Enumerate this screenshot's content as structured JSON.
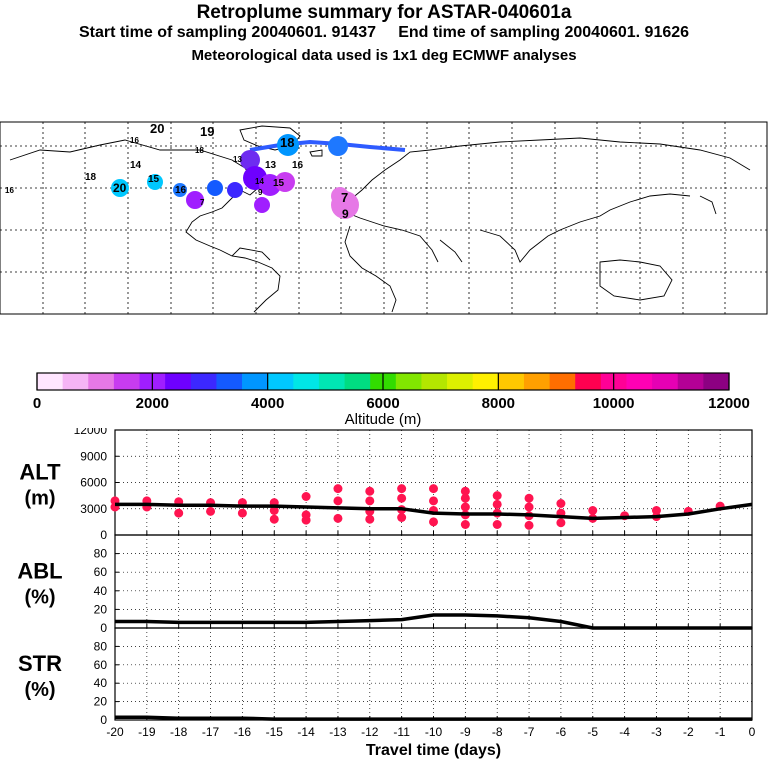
{
  "header": {
    "title": "Retroplume summary for ASTAR-040601a",
    "start_label": "Start time of sampling 20040601. 91437",
    "end_label": "End time of sampling 20040601. 91626",
    "meteo_label": "Meteorological data used is 1x1 deg ECMWF analyses"
  },
  "map": {
    "plume_labels": [
      "20",
      "19",
      "16",
      "18",
      "7",
      "13",
      "16",
      "14",
      "15",
      "18",
      "20",
      "16",
      "9",
      "7",
      "9",
      "18",
      "13",
      "15",
      "14",
      "16"
    ]
  },
  "colorbar": {
    "ticks": [
      "0",
      "2000",
      "4000",
      "6000",
      "8000",
      "10000",
      "12000"
    ],
    "label": "Altitude (m)",
    "colors": [
      "#ffe6ff",
      "#f5b4f5",
      "#e678e6",
      "#c83cf0",
      "#a01eff",
      "#6e00ff",
      "#3c28ff",
      "#145aff",
      "#0096ff",
      "#00c8ff",
      "#00e6e6",
      "#00e6b4",
      "#00dc82",
      "#32dc00",
      "#82e600",
      "#b4e600",
      "#dcf000",
      "#fff000",
      "#ffc800",
      "#ffa000",
      "#ff6e00",
      "#ff0050",
      "#ff0096",
      "#ff00b4",
      "#e600b4",
      "#b40096",
      "#8c0082"
    ]
  },
  "chart_data": [
    {
      "type": "line",
      "name": "ALT",
      "ylabel": "ALT",
      "yunit": "(m)",
      "ylim": [
        0,
        12000
      ],
      "yticks": [
        0,
        3000,
        6000,
        9000,
        12000
      ],
      "x": [
        -20,
        -19,
        -18,
        -17,
        -16,
        -15,
        -14,
        -13,
        -12,
        -11,
        -10,
        -9,
        -8,
        -7,
        -6,
        -5,
        -4,
        -3,
        -2,
        -1,
        0
      ],
      "values": [
        3500,
        3500,
        3400,
        3400,
        3300,
        3300,
        3200,
        3100,
        3000,
        3000,
        2500,
        2400,
        2400,
        2300,
        2100,
        1900,
        2000,
        2100,
        2400,
        3000,
        3500
      ],
      "dots": [
        [
          -20,
          3900
        ],
        [
          -20,
          3200
        ],
        [
          -19,
          3900
        ],
        [
          -19,
          3200
        ],
        [
          -18,
          3800
        ],
        [
          -18,
          2500
        ],
        [
          -17,
          3700
        ],
        [
          -17,
          2700
        ],
        [
          -16,
          3700
        ],
        [
          -16,
          2500
        ],
        [
          -15,
          3700
        ],
        [
          -15,
          2800
        ],
        [
          -15,
          1800
        ],
        [
          -14,
          4400
        ],
        [
          -14,
          2300
        ],
        [
          -14,
          1700
        ],
        [
          -13,
          5300
        ],
        [
          -13,
          3900
        ],
        [
          -13,
          1900
        ],
        [
          -12,
          5000
        ],
        [
          -12,
          3900
        ],
        [
          -12,
          2700
        ],
        [
          -12,
          1800
        ],
        [
          -11,
          5300
        ],
        [
          -11,
          4200
        ],
        [
          -11,
          2900
        ],
        [
          -11,
          2000
        ],
        [
          -10,
          5300
        ],
        [
          -10,
          3900
        ],
        [
          -10,
          2800
        ],
        [
          -10,
          1500
        ],
        [
          -9,
          5000
        ],
        [
          -9,
          4200
        ],
        [
          -9,
          3200
        ],
        [
          -9,
          2300
        ],
        [
          -9,
          1200
        ],
        [
          -8,
          4500
        ],
        [
          -8,
          3500
        ],
        [
          -8,
          2500
        ],
        [
          -8,
          1200
        ],
        [
          -7,
          4200
        ],
        [
          -7,
          3200
        ],
        [
          -7,
          2200
        ],
        [
          -7,
          1100
        ],
        [
          -6,
          3600
        ],
        [
          -6,
          2500
        ],
        [
          -6,
          1400
        ],
        [
          -5,
          2800
        ],
        [
          -5,
          1900
        ],
        [
          -4,
          2200
        ],
        [
          -3,
          2800
        ],
        [
          -3,
          2100
        ],
        [
          -2,
          2700
        ],
        [
          -1,
          3300
        ]
      ]
    },
    {
      "type": "line",
      "name": "ABL",
      "ylabel": "ABL",
      "yunit": "(%)",
      "ylim": [
        0,
        100
      ],
      "yticks": [
        0,
        20,
        40,
        60,
        80
      ],
      "x": [
        -20,
        -19,
        -18,
        -17,
        -16,
        -15,
        -14,
        -13,
        -12,
        -11,
        -10,
        -9,
        -8,
        -7,
        -6,
        -5,
        -4,
        -3,
        -2,
        -1,
        0
      ],
      "values": [
        7,
        7,
        6,
        6,
        6,
        6,
        6,
        7,
        8,
        9,
        14,
        14,
        13,
        11,
        7,
        0,
        0,
        0,
        0,
        0,
        0
      ]
    },
    {
      "type": "line",
      "name": "STR",
      "ylabel": "STR",
      "yunit": "(%)",
      "ylim": [
        0,
        100
      ],
      "yticks": [
        0,
        20,
        40,
        60,
        80
      ],
      "x": [
        -20,
        -19,
        -18,
        -17,
        -16,
        -15,
        -14,
        -13,
        -12,
        -11,
        -10,
        -9,
        -8,
        -7,
        -6,
        -5,
        -4,
        -3,
        -2,
        -1,
        0
      ],
      "values": [
        3,
        3,
        2,
        2,
        2,
        1,
        1,
        1,
        1,
        1,
        1,
        1,
        1,
        1,
        1,
        1,
        1,
        1,
        1,
        1,
        1
      ],
      "xlabel": "Travel time (days)",
      "xticks": [
        "-20",
        "-19",
        "-18",
        "-17",
        "-16",
        "-15",
        "-14",
        "-13",
        "-12",
        "-11",
        "-10",
        "-9",
        "-8",
        "-7",
        "-6",
        "-5",
        "-4",
        "-3",
        "-2",
        "-1",
        "0"
      ]
    }
  ]
}
